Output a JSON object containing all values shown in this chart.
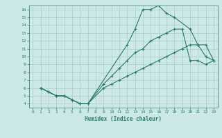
{
  "xlabel": "Humidex (Indice chaleur)",
  "ylabel": "",
  "background_color": "#cce8e8",
  "grid_color": "#aacccc",
  "line_color": "#2a7a6a",
  "xlim": [
    -0.5,
    23.5
  ],
  "ylim": [
    3.5,
    16.5
  ],
  "xticks": [
    0,
    1,
    2,
    3,
    4,
    5,
    6,
    7,
    8,
    9,
    10,
    11,
    12,
    13,
    14,
    15,
    16,
    17,
    18,
    19,
    20,
    21,
    22,
    23
  ],
  "yticks": [
    4,
    5,
    6,
    7,
    8,
    9,
    10,
    11,
    12,
    13,
    14,
    15,
    16
  ],
  "line1_x": [
    1,
    2,
    3,
    4,
    5,
    6,
    7,
    12,
    13,
    14,
    15,
    16,
    17,
    18,
    20,
    21,
    22,
    23
  ],
  "line1_y": [
    6,
    5.5,
    5,
    5,
    4.5,
    4,
    4,
    11.5,
    13.5,
    16,
    16,
    16.5,
    15.5,
    15,
    13.5,
    11.5,
    10,
    9.5
  ],
  "line2_x": [
    1,
    2,
    3,
    4,
    5,
    6,
    7,
    9,
    10,
    11,
    12,
    13,
    14,
    15,
    16,
    17,
    18,
    19,
    20,
    21,
    22,
    23
  ],
  "line2_y": [
    6,
    5.5,
    5,
    5,
    4.5,
    4,
    4,
    6.5,
    7.5,
    8.5,
    9.5,
    10.5,
    11,
    12,
    12.5,
    13,
    13.5,
    13.5,
    9.5,
    9.5,
    9,
    9.5
  ],
  "line3_x": [
    1,
    2,
    3,
    4,
    5,
    6,
    7,
    9,
    10,
    11,
    12,
    13,
    14,
    15,
    16,
    17,
    18,
    19,
    20,
    21,
    22,
    23
  ],
  "line3_y": [
    6,
    5.5,
    5,
    5,
    4.5,
    4,
    4,
    6.0,
    6.5,
    7.0,
    7.5,
    8.0,
    8.5,
    9.0,
    9.5,
    10.0,
    10.5,
    11.0,
    11.5,
    11.5,
    11.5,
    9.5
  ]
}
